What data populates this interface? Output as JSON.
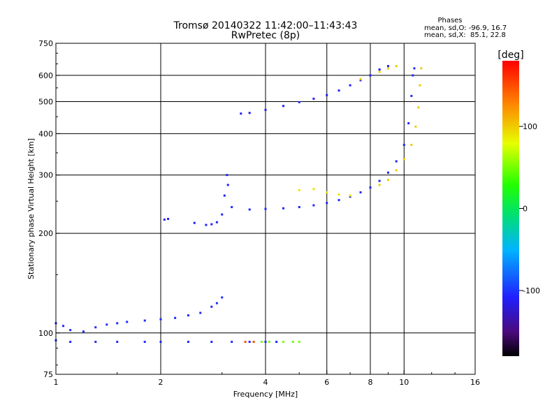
{
  "chart_data": {
    "type": "scatter",
    "title": "Tromsø 20140322 11:42:00–11:43:43",
    "subtitle": "RwPretec (8p)",
    "xlabel": "Frequency [MHz]",
    "ylabel": "Stationary phase Virtual Height [km]",
    "x_scale": "log",
    "y_scale": "log",
    "xlim": [
      1,
      16
    ],
    "ylim": [
      75,
      750
    ],
    "x_ticks": [
      1,
      2,
      4,
      6,
      8,
      10,
      16
    ],
    "y_ticks": [
      75,
      100,
      200,
      300,
      400,
      500,
      600,
      750
    ],
    "grid": true,
    "colorbar": {
      "label": "[deg]",
      "range": [
        -180,
        180
      ],
      "ticks": [
        100,
        0,
        -100
      ]
    },
    "phase_stats": {
      "header": "Phases",
      "line_o": "mean, sd,O: -96.9, 16.7",
      "line_x": "mean, sd,X:  85.1, 22.8"
    },
    "series": [
      {
        "phase": -105,
        "points": [
          [
            1.0,
            107
          ],
          [
            1.05,
            105
          ],
          [
            1.1,
            102
          ],
          [
            1.2,
            101
          ],
          [
            1.3,
            104
          ],
          [
            1.4,
            106
          ],
          [
            1.5,
            107
          ],
          [
            1.6,
            108
          ],
          [
            1.8,
            109
          ],
          [
            2.0,
            110
          ],
          [
            2.2,
            111
          ],
          [
            2.4,
            113
          ],
          [
            2.6,
            115
          ],
          [
            2.8,
            120
          ],
          [
            2.9,
            123
          ],
          [
            3.0,
            128
          ]
        ]
      },
      {
        "phase": -105,
        "points": [
          [
            1.0,
            95
          ],
          [
            1.1,
            94
          ],
          [
            1.3,
            94
          ],
          [
            1.5,
            94
          ],
          [
            1.8,
            94
          ],
          [
            2.0,
            94
          ],
          [
            2.4,
            94
          ],
          [
            2.8,
            94
          ],
          [
            3.2,
            94
          ],
          [
            3.6,
            94
          ],
          [
            4.0,
            94
          ],
          [
            4.3,
            94
          ]
        ]
      },
      {
        "phase": 50,
        "points": [
          [
            3.7,
            94
          ],
          [
            3.9,
            94
          ],
          [
            4.1,
            94
          ],
          [
            4.5,
            94
          ],
          [
            4.8,
            94
          ],
          [
            5.0,
            94
          ]
        ]
      },
      {
        "phase": 150,
        "points": [
          [
            3.5,
            94
          ],
          [
            3.7,
            94
          ]
        ]
      },
      {
        "phase": -110,
        "points": [
          [
            2.05,
            220
          ],
          [
            2.1,
            221
          ],
          [
            2.5,
            215
          ],
          [
            2.7,
            212
          ],
          [
            2.8,
            213
          ],
          [
            2.9,
            216
          ],
          [
            3.0,
            228
          ],
          [
            3.05,
            260
          ],
          [
            3.1,
            300
          ],
          [
            3.12,
            280
          ]
        ]
      },
      {
        "phase": -105,
        "points": [
          [
            3.2,
            240
          ],
          [
            3.6,
            236
          ],
          [
            4.0,
            237
          ],
          [
            4.5,
            238
          ],
          [
            5.0,
            240
          ],
          [
            5.5,
            243
          ],
          [
            6.0,
            247
          ],
          [
            6.5,
            252
          ],
          [
            7.0,
            258
          ],
          [
            7.5,
            266
          ],
          [
            8.0,
            275
          ],
          [
            8.5,
            288
          ],
          [
            9.0,
            305
          ],
          [
            9.5,
            330
          ],
          [
            10.0,
            370
          ],
          [
            10.3,
            430
          ],
          [
            10.5,
            520
          ],
          [
            10.6,
            600
          ],
          [
            10.7,
            630
          ]
        ]
      },
      {
        "phase": 90,
        "points": [
          [
            5.0,
            270
          ],
          [
            5.5,
            272
          ],
          [
            6.0,
            266
          ],
          [
            6.5,
            262
          ],
          [
            7.0,
            260
          ]
        ]
      },
      {
        "phase": 100,
        "points": [
          [
            8.5,
            280
          ],
          [
            9.0,
            290
          ],
          [
            9.5,
            310
          ],
          [
            10.0,
            335
          ],
          [
            10.5,
            370
          ],
          [
            10.8,
            420
          ],
          [
            11.0,
            480
          ],
          [
            11.1,
            560
          ],
          [
            11.2,
            630
          ]
        ]
      },
      {
        "phase": -110,
        "points": [
          [
            3.4,
            460
          ],
          [
            3.6,
            462
          ],
          [
            4.0,
            472
          ],
          [
            4.5,
            485
          ],
          [
            5.0,
            498
          ],
          [
            5.5,
            510
          ],
          [
            6.0,
            523
          ],
          [
            6.5,
            540
          ],
          [
            7.0,
            560
          ],
          [
            7.5,
            580
          ],
          [
            8.0,
            600
          ],
          [
            8.5,
            625
          ],
          [
            9.0,
            640
          ]
        ]
      },
      {
        "phase": 100,
        "points": [
          [
            7.5,
            585
          ],
          [
            8.5,
            615
          ],
          [
            9.0,
            630
          ],
          [
            9.5,
            640
          ]
        ]
      }
    ]
  }
}
